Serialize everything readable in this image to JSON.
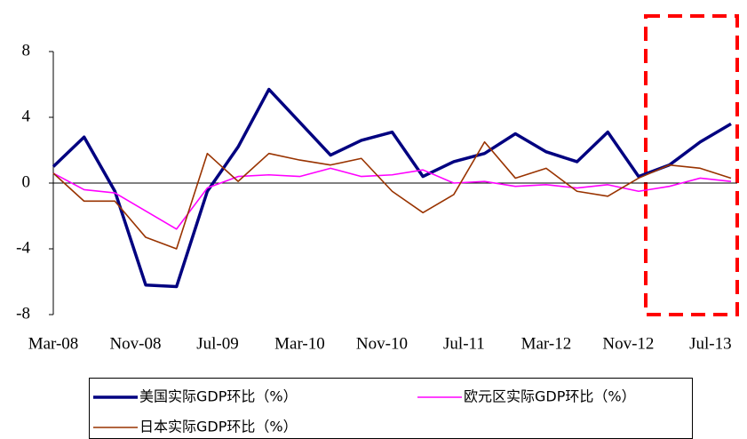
{
  "chart_data": {
    "type": "line",
    "x": [
      "Mar-08",
      "Jun-08",
      "Sep-08",
      "Dec-08",
      "Mar-09",
      "Jun-09",
      "Sep-09",
      "Dec-09",
      "Mar-10",
      "Jun-10",
      "Sep-10",
      "Dec-10",
      "Mar-11",
      "Jun-11",
      "Sep-11",
      "Dec-11",
      "Mar-12",
      "Jun-12",
      "Sep-12",
      "Dec-12",
      "Mar-13",
      "Jun-13",
      "Sep-13"
    ],
    "xlim": [
      "Mar-08",
      "Sep-13"
    ],
    "xticks": [
      "Mar-08",
      "Nov-08",
      "Jul-09",
      "Mar-10",
      "Nov-10",
      "Jul-11",
      "Mar-12",
      "Nov-12",
      "Jul-13"
    ],
    "ylim": [
      -8,
      8
    ],
    "yticks": [
      -8,
      -4,
      0,
      4,
      8
    ],
    "grid": false,
    "series": [
      {
        "name": "美国实际GDP环比（%）",
        "color": "#000080",
        "values": [
          1.0,
          2.8,
          -0.5,
          -6.2,
          -6.3,
          -0.5,
          2.2,
          5.7,
          3.7,
          1.7,
          2.6,
          3.1,
          0.4,
          1.3,
          1.8,
          3.0,
          1.9,
          1.3,
          3.1,
          0.4,
          1.1,
          2.5,
          3.6
        ]
      },
      {
        "name": "欧元区实际GDP环比（%）",
        "color": "#ff00ff",
        "values": [
          0.6,
          -0.4,
          -0.6,
          -1.7,
          -2.8,
          -0.3,
          0.4,
          0.5,
          0.4,
          0.9,
          0.4,
          0.5,
          0.8,
          0.0,
          0.1,
          -0.2,
          -0.1,
          -0.3,
          -0.1,
          -0.5,
          -0.2,
          0.3,
          0.1
        ]
      },
      {
        "name": "日本实际GDP环比（%）",
        "color": "#993300",
        "values": [
          0.6,
          -1.1,
          -1.1,
          -3.3,
          -4.0,
          1.8,
          0.1,
          1.8,
          1.4,
          1.1,
          1.5,
          -0.5,
          -1.8,
          -0.7,
          2.5,
          0.3,
          0.9,
          -0.5,
          -0.8,
          0.3,
          1.1,
          0.9,
          0.3
        ]
      }
    ]
  }
}
